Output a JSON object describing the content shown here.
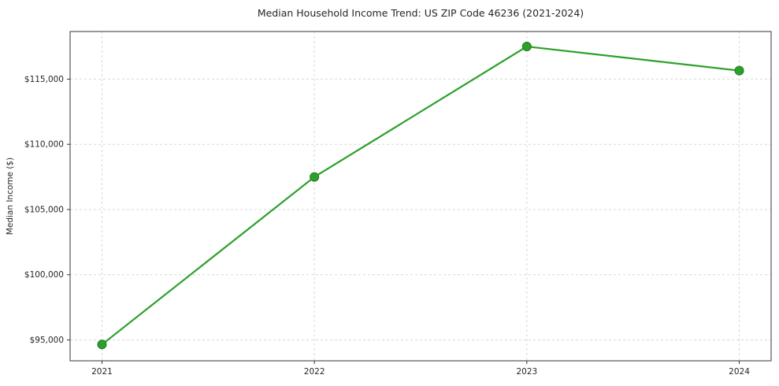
{
  "chart_data": {
    "type": "line",
    "title": "Median Household Income Trend: US ZIP Code 46236 (2021-2024)",
    "xlabel": "",
    "ylabel": "Median Income ($)",
    "x": [
      2021,
      2022,
      2023,
      2024
    ],
    "series": [
      {
        "name": "Median Household Income",
        "values": [
          94650,
          107500,
          117500,
          115650
        ]
      }
    ],
    "xticks": [
      2021,
      2022,
      2023,
      2024
    ],
    "xtick_labels": [
      "2021",
      "2022",
      "2023",
      "2024"
    ],
    "yticks": [
      95000,
      100000,
      105000,
      110000,
      115000
    ],
    "ytick_labels": [
      "$95,000",
      "$100,000",
      "$105,000",
      "$110,000",
      "$115,000"
    ],
    "xlim": [
      2020.85,
      2024.15
    ],
    "ylim": [
      93400,
      118650
    ],
    "grid": true,
    "legend": "none",
    "colors": {
      "line": "#2ca02c",
      "marker": "#2ca02c",
      "marker_edge": "#1f7a1f",
      "grid": "#d7d7d7",
      "frame": "#333333",
      "text": "#262626"
    }
  }
}
